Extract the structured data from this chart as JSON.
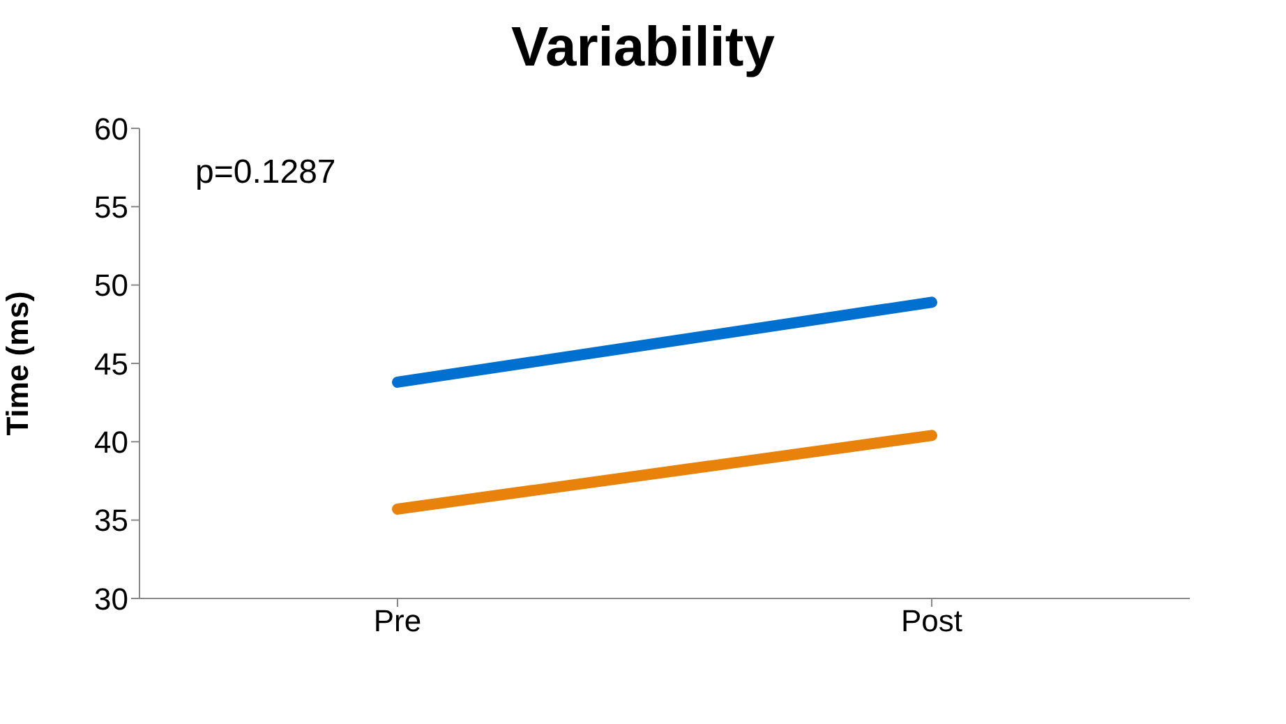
{
  "chart_data": {
    "type": "line",
    "title": "Variability",
    "ylabel": "Time (ms)",
    "categories": [
      "Pre",
      "Post"
    ],
    "series": [
      {
        "color": "#0070d0",
        "values": [
          43.8,
          48.9
        ]
      },
      {
        "color": "#e8820a",
        "values": [
          35.7,
          40.4
        ]
      }
    ],
    "ylim": [
      30,
      60
    ],
    "yticks": [
      30,
      35,
      40,
      45,
      50,
      55,
      60
    ],
    "grid": false,
    "legend": false,
    "marker": "none",
    "line_style": "solid",
    "annotations": [
      "p=0.1287"
    ]
  }
}
